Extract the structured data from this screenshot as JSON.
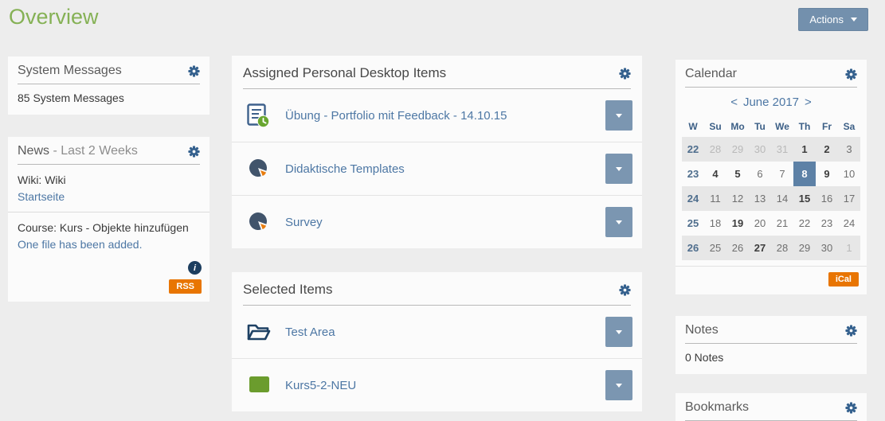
{
  "page": {
    "title": "Overview",
    "actions_label": "Actions"
  },
  "left": {
    "system_messages": {
      "title": "System Messages",
      "count_text": "85 System Messages"
    },
    "news": {
      "title": "News",
      "subtitle": " - Last 2 Weeks",
      "items": [
        {
          "context": "Wiki: Wiki",
          "link": "Startseite"
        },
        {
          "context": "Course: Kurs - Objekte hinzufügen",
          "link": "One file has been added."
        }
      ],
      "info_glyph": "i",
      "rss_label": "RSS"
    }
  },
  "center": {
    "assigned": {
      "title": "Assigned Personal Desktop Items",
      "items": [
        {
          "label": "Übung - Portfolio mit Feedback - 14.10.15",
          "icon": "exercise-icon"
        },
        {
          "label": "Didaktische Templates",
          "icon": "survey-icon"
        },
        {
          "label": "Survey",
          "icon": "survey-icon"
        }
      ]
    },
    "selected": {
      "title": "Selected Items",
      "items": [
        {
          "label": "Test Area",
          "icon": "folder-icon"
        },
        {
          "label": "Kurs5-2-NEU",
          "icon": "course-icon"
        }
      ]
    }
  },
  "right": {
    "calendar": {
      "title": "Calendar",
      "prev_label": "<",
      "month_label": "June 2017",
      "next_label": ">",
      "day_headers": [
        "W",
        "Su",
        "Mo",
        "Tu",
        "We",
        "Th",
        "Fr",
        "Sa"
      ],
      "weeks": [
        {
          "week": "22",
          "shaded": true,
          "days": [
            {
              "d": "28",
              "state": "muted"
            },
            {
              "d": "29",
              "state": "muted"
            },
            {
              "d": "30",
              "state": "muted"
            },
            {
              "d": "31",
              "state": "muted"
            },
            {
              "d": "1",
              "state": "bold"
            },
            {
              "d": "2",
              "state": "bold"
            },
            {
              "d": "3",
              "state": ""
            }
          ]
        },
        {
          "week": "23",
          "shaded": false,
          "days": [
            {
              "d": "4",
              "state": "bold"
            },
            {
              "d": "5",
              "state": "bold"
            },
            {
              "d": "6",
              "state": ""
            },
            {
              "d": "7",
              "state": ""
            },
            {
              "d": "8",
              "state": "selected"
            },
            {
              "d": "9",
              "state": "bold"
            },
            {
              "d": "10",
              "state": ""
            }
          ]
        },
        {
          "week": "24",
          "shaded": true,
          "days": [
            {
              "d": "11",
              "state": ""
            },
            {
              "d": "12",
              "state": ""
            },
            {
              "d": "13",
              "state": ""
            },
            {
              "d": "14",
              "state": ""
            },
            {
              "d": "15",
              "state": "bold"
            },
            {
              "d": "16",
              "state": ""
            },
            {
              "d": "17",
              "state": ""
            }
          ]
        },
        {
          "week": "25",
          "shaded": false,
          "days": [
            {
              "d": "18",
              "state": ""
            },
            {
              "d": "19",
              "state": "bold"
            },
            {
              "d": "20",
              "state": ""
            },
            {
              "d": "21",
              "state": ""
            },
            {
              "d": "22",
              "state": ""
            },
            {
              "d": "23",
              "state": ""
            },
            {
              "d": "24",
              "state": ""
            }
          ]
        },
        {
          "week": "26",
          "shaded": true,
          "days": [
            {
              "d": "25",
              "state": ""
            },
            {
              "d": "26",
              "state": ""
            },
            {
              "d": "27",
              "state": "bold"
            },
            {
              "d": "28",
              "state": ""
            },
            {
              "d": "29",
              "state": ""
            },
            {
              "d": "30",
              "state": ""
            },
            {
              "d": "1",
              "state": "muted"
            }
          ]
        }
      ],
      "ical_label": "iCal"
    },
    "notes": {
      "title": "Notes",
      "count_text": "0 Notes"
    },
    "bookmarks": {
      "title": "Bookmarks"
    }
  },
  "colors": {
    "accent_green": "#85b155",
    "link_blue": "#4d77a4",
    "steel_blue": "#7b96b1",
    "gear_blue": "#35618e",
    "orange": "#e87502",
    "selected_day": "#5d81a6"
  }
}
